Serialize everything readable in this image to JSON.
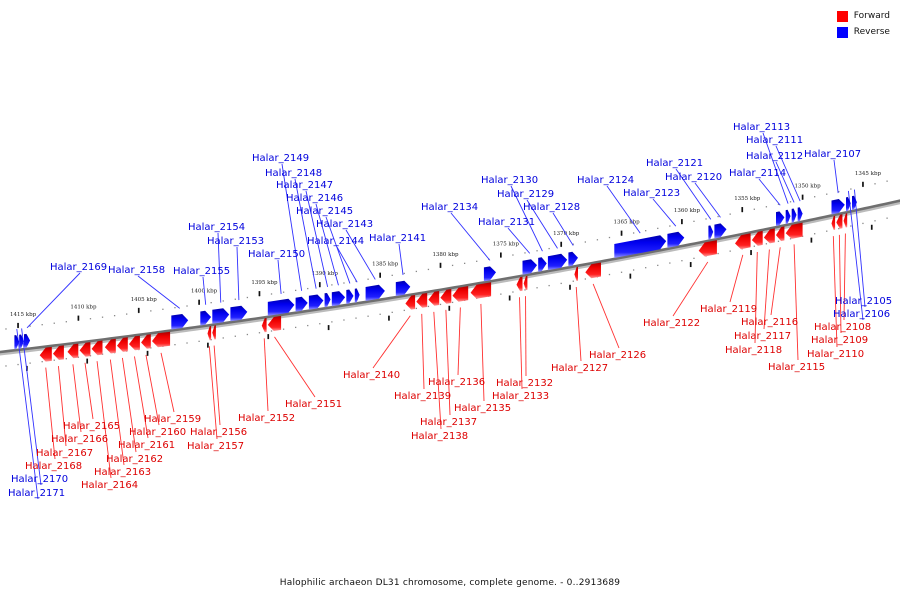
{
  "legend": {
    "items": [
      {
        "label": "Forward",
        "color": "#ff0000"
      },
      {
        "label": "Reverse",
        "color": "#0000ff"
      }
    ]
  },
  "caption": "Halophilic archaeon DL31 chromosome, complete genome. - 0..2913689",
  "colors": {
    "forward": "#ff0000",
    "forward_label": "#dd0000",
    "reverse": "#0000ff",
    "reverse_label": "#0000dd",
    "backbone": "#777777"
  },
  "scale": {
    "unit": "kbp",
    "ticks": [
      1415,
      1410,
      1405,
      1400,
      1395,
      1390,
      1385,
      1380,
      1375,
      1370,
      1365,
      1360,
      1355,
      1350,
      1345
    ]
  },
  "genes": [
    {
      "name": "Halar_2171",
      "strand": "reverse",
      "start": 1415.3,
      "end": 1414.9
    },
    {
      "name": "Halar_2170",
      "strand": "reverse",
      "start": 1414.9,
      "end": 1414.5
    },
    {
      "name": "Halar_2169",
      "strand": "reverse",
      "start": 1414.5,
      "end": 1414.0
    },
    {
      "name": "Halar_2168",
      "strand": "forward",
      "start": 1413.2,
      "end": 1412.2
    },
    {
      "name": "Halar_2167",
      "strand": "forward",
      "start": 1412.1,
      "end": 1411.2
    },
    {
      "name": "Halar_2166",
      "strand": "forward",
      "start": 1410.9,
      "end": 1410.0
    },
    {
      "name": "Halar_2165",
      "strand": "forward",
      "start": 1409.9,
      "end": 1409.0
    },
    {
      "name": "Halar_2164",
      "strand": "forward",
      "start": 1408.9,
      "end": 1408.0
    },
    {
      "name": "Halar_2163",
      "strand": "forward",
      "start": 1407.8,
      "end": 1406.9
    },
    {
      "name": "Halar_2162",
      "strand": "forward",
      "start": 1406.8,
      "end": 1405.9
    },
    {
      "name": "Halar_2161",
      "strand": "forward",
      "start": 1405.8,
      "end": 1404.9
    },
    {
      "name": "Halar_2160",
      "strand": "forward",
      "start": 1404.8,
      "end": 1404.0
    },
    {
      "name": "Halar_2159",
      "strand": "forward",
      "start": 1403.9,
      "end": 1402.4
    },
    {
      "name": "Halar_2158",
      "strand": "reverse",
      "start": 1402.3,
      "end": 1400.9
    },
    {
      "name": "Halar_2157",
      "strand": "forward",
      "start": 1399.3,
      "end": 1399.0
    },
    {
      "name": "Halar_2156",
      "strand": "forward",
      "start": 1398.9,
      "end": 1398.6
    },
    {
      "name": "Halar_2155",
      "strand": "reverse",
      "start": 1399.9,
      "end": 1399.0
    },
    {
      "name": "Halar_2154",
      "strand": "reverse",
      "start": 1398.9,
      "end": 1397.5
    },
    {
      "name": "Halar_2153",
      "strand": "reverse",
      "start": 1397.4,
      "end": 1396.0
    },
    {
      "name": "Halar_2152",
      "strand": "forward",
      "start": 1394.8,
      "end": 1394.4
    },
    {
      "name": "Halar_2151",
      "strand": "forward",
      "start": 1394.3,
      "end": 1393.2
    },
    {
      "name": "Halar_2150",
      "strand": "reverse",
      "start": 1394.3,
      "end": 1392.1
    },
    {
      "name": "Halar_2149",
      "strand": "reverse",
      "start": 1392.0,
      "end": 1391.0
    },
    {
      "name": "Halar_2148",
      "strand": "reverse",
      "start": 1390.9,
      "end": 1389.7
    },
    {
      "name": "Halar_2147",
      "strand": "reverse",
      "start": 1389.6,
      "end": 1389.1
    },
    {
      "name": "Halar_2146",
      "strand": "reverse",
      "start": 1389.0,
      "end": 1387.9
    },
    {
      "name": "Halar_2145",
      "strand": "reverse",
      "start": 1387.8,
      "end": 1387.2
    },
    {
      "name": "Halar_2144",
      "strand": "reverse",
      "start": 1387.1,
      "end": 1386.7
    },
    {
      "name": "Halar_2143",
      "strand": "reverse",
      "start": 1386.2,
      "end": 1384.6
    },
    {
      "name": "Halar_2141",
      "strand": "reverse",
      "start": 1383.7,
      "end": 1382.5
    },
    {
      "name": "Halar_2140",
      "strand": "forward",
      "start": 1382.9,
      "end": 1382.1
    },
    {
      "name": "Halar_2139",
      "strand": "forward",
      "start": 1382.0,
      "end": 1381.1
    },
    {
      "name": "Halar_2138",
      "strand": "forward",
      "start": 1381.0,
      "end": 1380.1
    },
    {
      "name": "Halar_2137",
      "strand": "forward",
      "start": 1380.0,
      "end": 1379.1
    },
    {
      "name": "Halar_2136",
      "strand": "forward",
      "start": 1379.0,
      "end": 1377.7
    },
    {
      "name": "Halar_2135",
      "strand": "forward",
      "start": 1377.5,
      "end": 1375.8
    },
    {
      "name": "Halar_2134",
      "strand": "reverse",
      "start": 1376.4,
      "end": 1375.4
    },
    {
      "name": "Halar_2133",
      "strand": "forward",
      "start": 1373.7,
      "end": 1373.2
    },
    {
      "name": "Halar_2132",
      "strand": "forward",
      "start": 1373.1,
      "end": 1372.8
    },
    {
      "name": "Halar_2131",
      "strand": "reverse",
      "start": 1373.2,
      "end": 1372.0
    },
    {
      "name": "Halar_2130",
      "strand": "reverse",
      "start": 1371.9,
      "end": 1371.2
    },
    {
      "name": "Halar_2129",
      "strand": "reverse",
      "start": 1371.1,
      "end": 1369.5
    },
    {
      "name": "Halar_2128",
      "strand": "reverse",
      "start": 1369.4,
      "end": 1368.6
    },
    {
      "name": "Halar_2127",
      "strand": "forward",
      "start": 1368.9,
      "end": 1368.6
    },
    {
      "name": "Halar_2126",
      "strand": "forward",
      "start": 1368.0,
      "end": 1366.7
    },
    {
      "name": "Halar_2124",
      "strand": "reverse",
      "start": 1365.6,
      "end": 1361.3
    },
    {
      "name": "Halar_2123",
      "strand": "reverse",
      "start": 1361.2,
      "end": 1359.8
    },
    {
      "name": "Halar_2122",
      "strand": "forward",
      "start": 1358.6,
      "end": 1357.1
    },
    {
      "name": "Halar_2121",
      "strand": "reverse",
      "start": 1357.8,
      "end": 1357.4
    },
    {
      "name": "Halar_2120",
      "strand": "reverse",
      "start": 1357.3,
      "end": 1356.3
    },
    {
      "name": "Halar_2119",
      "strand": "forward",
      "start": 1355.6,
      "end": 1354.3
    },
    {
      "name": "Halar_2118",
      "strand": "forward",
      "start": 1354.2,
      "end": 1353.3
    },
    {
      "name": "Halar_2117",
      "strand": "forward",
      "start": 1353.2,
      "end": 1352.3
    },
    {
      "name": "Halar_2116",
      "strand": "forward",
      "start": 1352.2,
      "end": 1351.5
    },
    {
      "name": "Halar_2115",
      "strand": "forward",
      "start": 1351.4,
      "end": 1350.0
    },
    {
      "name": "Halar_2114",
      "strand": "reverse",
      "start": 1352.2,
      "end": 1351.5
    },
    {
      "name": "Halar_2113",
      "strand": "reverse",
      "start": 1351.4,
      "end": 1351.0
    },
    {
      "name": "Halar_2112",
      "strand": "reverse",
      "start": 1350.9,
      "end": 1350.5
    },
    {
      "name": "Halar_2111",
      "strand": "reverse",
      "start": 1350.4,
      "end": 1350.0
    },
    {
      "name": "Halar_2110",
      "strand": "forward",
      "start": 1347.6,
      "end": 1347.3
    },
    {
      "name": "Halar_2109",
      "strand": "forward",
      "start": 1347.2,
      "end": 1346.7
    },
    {
      "name": "Halar_2108",
      "strand": "forward",
      "start": 1346.6,
      "end": 1346.3
    },
    {
      "name": "Halar_2107",
      "strand": "reverse",
      "start": 1347.6,
      "end": 1346.5
    },
    {
      "name": "Halar_2106",
      "strand": "reverse",
      "start": 1346.4,
      "end": 1346.0
    },
    {
      "name": "Halar_2105",
      "strand": "reverse",
      "start": 1345.9,
      "end": 1345.5
    }
  ],
  "labels": [
    {
      "gene": "Halar_2169",
      "strand": "reverse"
    },
    {
      "gene": "Halar_2158",
      "strand": "reverse"
    },
    {
      "gene": "Halar_2155",
      "strand": "reverse"
    },
    {
      "gene": "Halar_2154",
      "strand": "reverse"
    },
    {
      "gene": "Halar_2153",
      "strand": "reverse"
    },
    {
      "gene": "Halar_2150",
      "strand": "reverse"
    },
    {
      "gene": "Halar_2149",
      "strand": "reverse"
    },
    {
      "gene": "Halar_2148",
      "strand": "reverse"
    },
    {
      "gene": "Halar_2147",
      "strand": "reverse"
    },
    {
      "gene": "Halar_2146",
      "strand": "reverse"
    },
    {
      "gene": "Halar_2145",
      "strand": "reverse"
    },
    {
      "gene": "Halar_2144",
      "strand": "reverse"
    },
    {
      "gene": "Halar_2143",
      "strand": "reverse"
    },
    {
      "gene": "Halar_2141",
      "strand": "reverse"
    },
    {
      "gene": "Halar_2134",
      "strand": "reverse"
    },
    {
      "gene": "Halar_2131",
      "strand": "reverse"
    },
    {
      "gene": "Halar_2130",
      "strand": "reverse"
    },
    {
      "gene": "Halar_2129",
      "strand": "reverse"
    },
    {
      "gene": "Halar_2128",
      "strand": "reverse"
    },
    {
      "gene": "Halar_2124",
      "strand": "reverse"
    },
    {
      "gene": "Halar_2123",
      "strand": "reverse"
    },
    {
      "gene": "Halar_2121",
      "strand": "reverse"
    },
    {
      "gene": "Halar_2120",
      "strand": "reverse"
    },
    {
      "gene": "Halar_2114",
      "strand": "reverse"
    },
    {
      "gene": "Halar_2113",
      "strand": "reverse"
    },
    {
      "gene": "Halar_2112",
      "strand": "reverse"
    },
    {
      "gene": "Halar_2111",
      "strand": "reverse"
    },
    {
      "gene": "Halar_2107",
      "strand": "reverse"
    },
    {
      "gene": "Halar_2106",
      "strand": "reverse"
    },
    {
      "gene": "Halar_2105",
      "strand": "reverse"
    },
    {
      "gene": "Halar_2171",
      "strand": "reverse"
    },
    {
      "gene": "Halar_2170",
      "strand": "reverse"
    }
  ]
}
